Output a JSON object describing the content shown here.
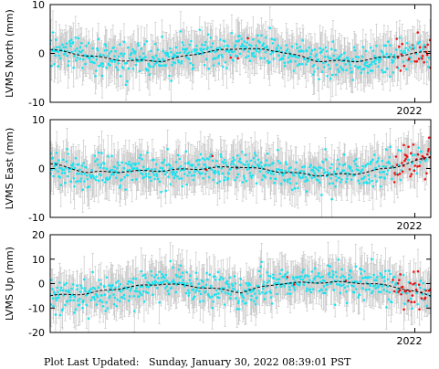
{
  "footer": {
    "label": "Plot Last Updated:",
    "value": "Sunday, January 30, 2022 08:39:01 PST"
  },
  "colors": {
    "data": "#19e3f0",
    "recent": "#ee1111",
    "error_bars": "#c8c8c8",
    "trend": "#000000"
  },
  "chart_data": [
    {
      "type": "scatter",
      "ylabel": "LVMS North (mm)",
      "ylim": [
        -10,
        10
      ],
      "yticks": [
        "10",
        "0",
        "-10"
      ],
      "xtick_labels": [
        "2022"
      ],
      "trend_points": [
        [
          0.0,
          0.8
        ],
        [
          0.1,
          -0.5
        ],
        [
          0.2,
          -1.5
        ],
        [
          0.3,
          -1.5
        ],
        [
          0.4,
          0.2
        ],
        [
          0.5,
          1.1
        ],
        [
          0.6,
          0.5
        ],
        [
          0.7,
          -1.5
        ],
        [
          0.8,
          -1.6
        ],
        [
          0.9,
          -0.6
        ],
        [
          1.0,
          0.4
        ]
      ],
      "recent_from": 0.9
    },
    {
      "type": "scatter",
      "ylabel": "LVMS East (mm)",
      "ylim": [
        -10,
        10
      ],
      "yticks": [
        "10",
        "0",
        "-10"
      ],
      "xtick_labels": [
        "2022"
      ],
      "trend_points": [
        [
          0.0,
          1.0
        ],
        [
          0.1,
          -0.8
        ],
        [
          0.2,
          -0.6
        ],
        [
          0.3,
          -0.4
        ],
        [
          0.4,
          0.0
        ],
        [
          0.5,
          0.4
        ],
        [
          0.6,
          -0.6
        ],
        [
          0.7,
          -1.4
        ],
        [
          0.8,
          -1.1
        ],
        [
          0.9,
          0.2
        ],
        [
          1.0,
          2.4
        ]
      ],
      "recent_from": 0.9
    },
    {
      "type": "scatter",
      "ylabel": "LVMS Up (mm)",
      "ylim": [
        -20,
        20
      ],
      "yticks": [
        "20",
        "10",
        "0",
        "-10",
        "-20"
      ],
      "xtick_labels": [
        "2022"
      ],
      "trend_points": [
        [
          0.0,
          -5.0
        ],
        [
          0.1,
          -4.0
        ],
        [
          0.2,
          -1.5
        ],
        [
          0.3,
          0.0
        ],
        [
          0.4,
          -1.5
        ],
        [
          0.5,
          -3.5
        ],
        [
          0.6,
          0.0
        ],
        [
          0.7,
          0.5
        ],
        [
          0.8,
          0.5
        ],
        [
          0.9,
          -1.0
        ],
        [
          1.0,
          -5.0
        ]
      ],
      "recent_from": 0.9
    }
  ]
}
